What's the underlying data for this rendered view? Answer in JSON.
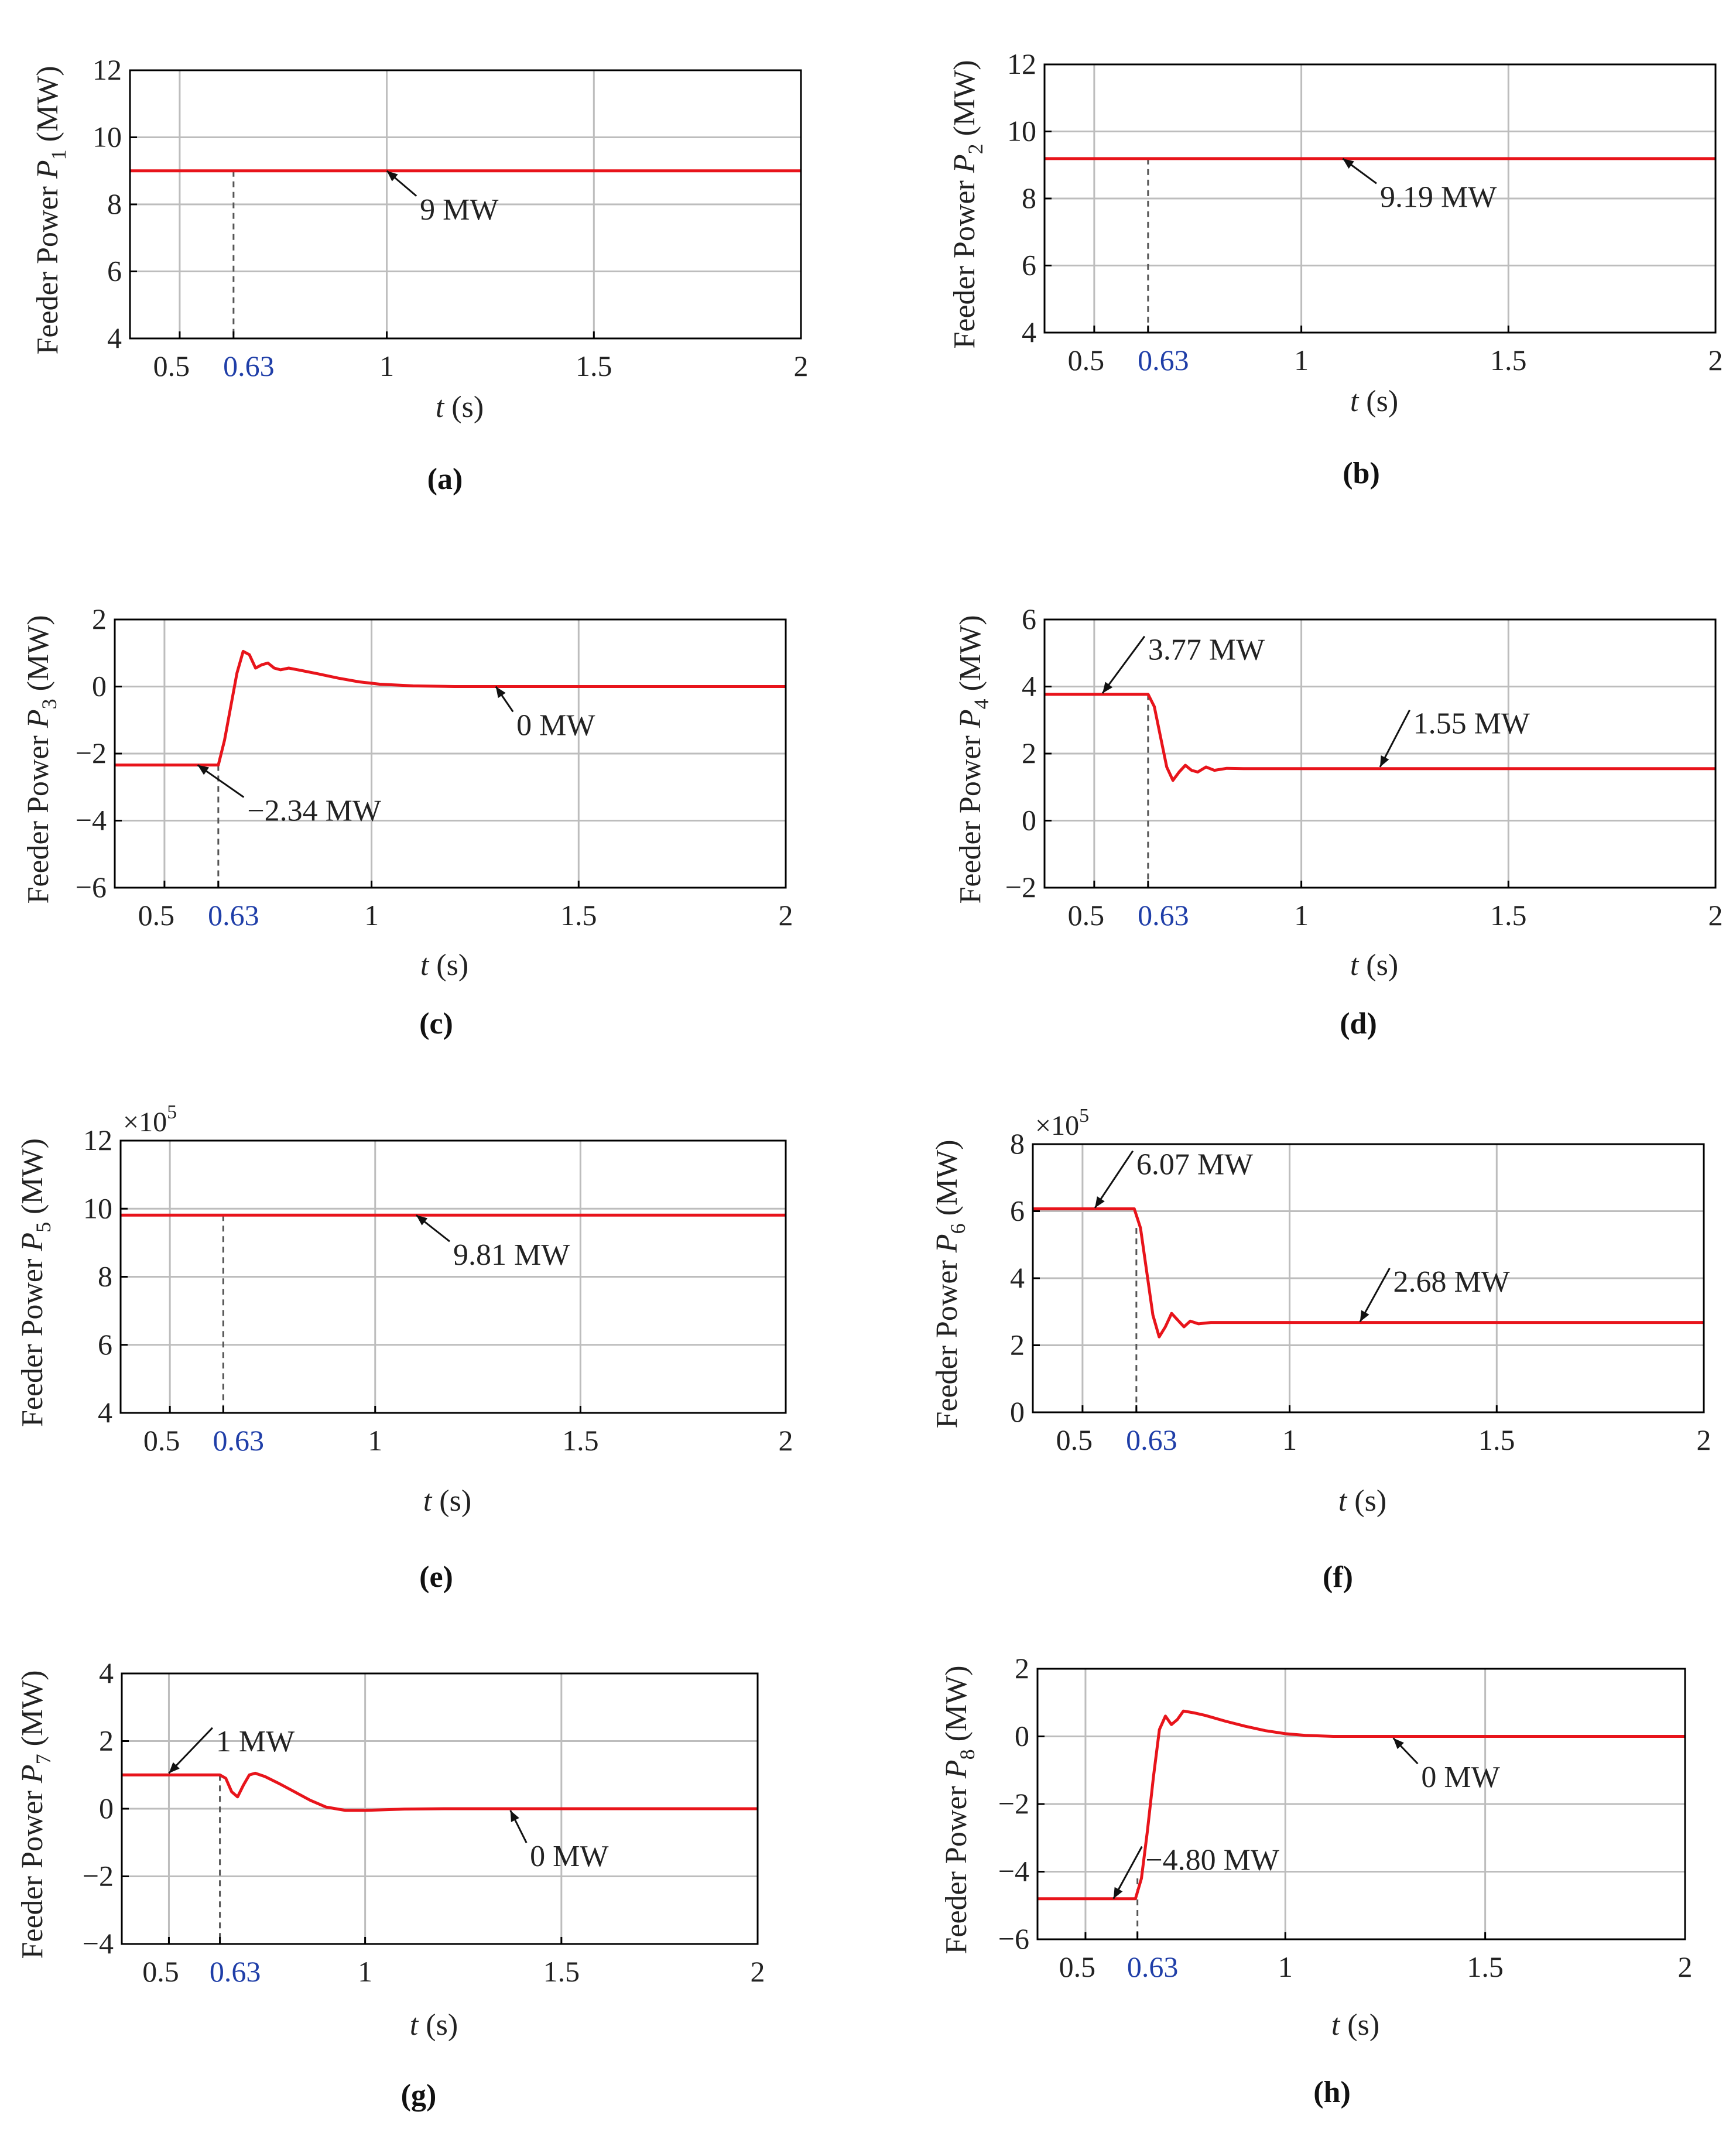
{
  "figure": {
    "axis_color": "#000000",
    "grid_color": "#bdbdbd",
    "line_color": "#e8141b",
    "highlight_tick_color": "#1f3ea8"
  },
  "chart_data": [
    {
      "id": "a",
      "caption": "(a)",
      "type": "line",
      "title": "",
      "ylabel_prefix": "Feeder Power ",
      "ylabel_var": "P",
      "ylabel_sub": "1",
      "ylabel_suffix": " (MW)",
      "xlabel_var": "t",
      "xlabel_suffix": " (s)",
      "xlim": [
        0.38,
        2
      ],
      "ylim": [
        4,
        12
      ],
      "xticks": [
        0.5,
        0.63,
        1,
        1.5,
        2
      ],
      "xtick_labels": [
        "0.5",
        "0.63",
        "1",
        "1.5",
        "2"
      ],
      "highlight_xtick": "0.63",
      "yticks": [
        4,
        6,
        8,
        10,
        12
      ],
      "ytick_labels": [
        "4",
        "6",
        "8",
        "10",
        "12"
      ],
      "grid_x": [
        0.5,
        1,
        1.5
      ],
      "grid_y": [
        6,
        8,
        10
      ],
      "scale_label": "",
      "dashed_x": 0.63,
      "series": [
        {
          "name": "P1",
          "points": [
            [
              0.38,
              9
            ],
            [
              2,
              9
            ]
          ]
        }
      ],
      "annotations": [
        {
          "text": "9 MW",
          "target": [
            1.0,
            9
          ],
          "text_at": [
            1.08,
            7.55
          ]
        }
      ]
    },
    {
      "id": "b",
      "caption": "(b)",
      "type": "line",
      "title": "",
      "ylabel_prefix": "Feeder Power ",
      "ylabel_var": "P",
      "ylabel_sub": "2",
      "ylabel_suffix": " (MW)",
      "xlabel_var": "t",
      "xlabel_suffix": " (s)",
      "xlim": [
        0.38,
        2
      ],
      "ylim": [
        4,
        12
      ],
      "xticks": [
        0.5,
        0.63,
        1,
        1.5,
        2
      ],
      "xtick_labels": [
        "0.5",
        "0.63",
        "1",
        "1.5",
        "2"
      ],
      "highlight_xtick": "0.63",
      "yticks": [
        4,
        6,
        8,
        10,
        12
      ],
      "ytick_labels": [
        "4",
        "6",
        "8",
        "10",
        "12"
      ],
      "grid_x": [
        0.5,
        1,
        1.5
      ],
      "grid_y": [
        6,
        8,
        10
      ],
      "scale_label": "",
      "dashed_x": 0.63,
      "series": [
        {
          "name": "P2",
          "points": [
            [
              0.38,
              9.19
            ],
            [
              2,
              9.19
            ]
          ]
        }
      ],
      "annotations": [
        {
          "text": "9.19 MW",
          "target": [
            1.1,
            9.19
          ],
          "text_at": [
            1.19,
            7.75
          ]
        }
      ]
    },
    {
      "id": "c",
      "caption": "(c)",
      "type": "line",
      "title": "",
      "ylabel_prefix": "Feeder Power ",
      "ylabel_var": "P",
      "ylabel_sub": "3",
      "ylabel_suffix": " (MW)",
      "xlabel_var": "t",
      "xlabel_suffix": " (s)",
      "xlim": [
        0.38,
        2
      ],
      "ylim": [
        -6,
        2
      ],
      "xticks": [
        0.5,
        0.63,
        1,
        1.5,
        2
      ],
      "xtick_labels": [
        "0.5",
        "0.63",
        "1",
        "1.5",
        "2"
      ],
      "highlight_xtick": "0.63",
      "yticks": [
        -6,
        -4,
        -2,
        0,
        2
      ],
      "ytick_labels": [
        "-6",
        "-4",
        "-2",
        "0",
        "2"
      ],
      "grid_x": [
        0.5,
        1,
        1.5
      ],
      "grid_y": [
        -4,
        -2,
        0
      ],
      "scale_label": "",
      "dashed_x": 0.63,
      "series": [
        {
          "name": "P3",
          "points": [
            [
              0.38,
              -2.34
            ],
            [
              0.63,
              -2.34
            ],
            [
              0.645,
              -1.6
            ],
            [
              0.66,
              -0.6
            ],
            [
              0.675,
              0.4
            ],
            [
              0.69,
              1.05
            ],
            [
              0.705,
              0.95
            ],
            [
              0.72,
              0.55
            ],
            [
              0.735,
              0.65
            ],
            [
              0.75,
              0.7
            ],
            [
              0.765,
              0.55
            ],
            [
              0.78,
              0.5
            ],
            [
              0.8,
              0.55
            ],
            [
              0.83,
              0.48
            ],
            [
              0.87,
              0.38
            ],
            [
              0.92,
              0.25
            ],
            [
              0.97,
              0.14
            ],
            [
              1.02,
              0.07
            ],
            [
              1.1,
              0.02
            ],
            [
              1.2,
              0.0
            ],
            [
              2,
              0.0
            ]
          ]
        }
      ],
      "annotations": [
        {
          "text": "0 MW",
          "target": [
            1.3,
            0
          ],
          "text_at": [
            1.35,
            -1.45
          ]
        },
        {
          "text": "−2.34 MW",
          "target": [
            0.58,
            -2.34
          ],
          "text_at": [
            0.7,
            -4.0
          ]
        }
      ]
    },
    {
      "id": "d",
      "caption": "(d)",
      "type": "line",
      "title": "",
      "ylabel_prefix": "Feeder Power ",
      "ylabel_var": "P",
      "ylabel_sub": "4",
      "ylabel_suffix": " (MW)",
      "xlabel_var": "t",
      "xlabel_suffix": " (s)",
      "xlim": [
        0.38,
        2
      ],
      "ylim": [
        -2,
        6
      ],
      "xticks": [
        0.5,
        0.63,
        1,
        1.5,
        2
      ],
      "xtick_labels": [
        "0.5",
        "0.63",
        "1",
        "1.5",
        "2"
      ],
      "highlight_xtick": "0.63",
      "yticks": [
        -2,
        0,
        2,
        4,
        6
      ],
      "ytick_labels": [
        "-2",
        "0",
        "2",
        "4",
        "6"
      ],
      "grid_x": [
        0.5,
        1,
        1.5
      ],
      "grid_y": [
        0,
        2,
        4
      ],
      "scale_label": "",
      "dashed_x": 0.63,
      "series": [
        {
          "name": "P4",
          "points": [
            [
              0.38,
              3.77
            ],
            [
              0.63,
              3.77
            ],
            [
              0.645,
              3.4
            ],
            [
              0.66,
              2.5
            ],
            [
              0.675,
              1.6
            ],
            [
              0.69,
              1.2
            ],
            [
              0.705,
              1.45
            ],
            [
              0.72,
              1.65
            ],
            [
              0.735,
              1.5
            ],
            [
              0.75,
              1.45
            ],
            [
              0.77,
              1.6
            ],
            [
              0.79,
              1.5
            ],
            [
              0.82,
              1.56
            ],
            [
              0.86,
              1.55
            ],
            [
              2,
              1.55
            ]
          ]
        }
      ],
      "annotations": [
        {
          "text": "3.77 MW",
          "target": [
            0.52,
            3.8
          ],
          "text_at": [
            0.63,
            4.8
          ]
        },
        {
          "text": "1.55 MW",
          "target": [
            1.19,
            1.6
          ],
          "text_at": [
            1.27,
            2.6
          ]
        }
      ]
    },
    {
      "id": "e",
      "caption": "(e)",
      "type": "line",
      "title": "",
      "ylabel_prefix": "Feeder Power ",
      "ylabel_var": "P",
      "ylabel_sub": "5",
      "ylabel_suffix": " (MW)",
      "xlabel_var": "t",
      "xlabel_suffix": " (s)",
      "xlim": [
        0.38,
        2
      ],
      "ylim": [
        4,
        12
      ],
      "xticks": [
        0.5,
        0.63,
        1,
        1.5,
        2
      ],
      "xtick_labels": [
        "0.5",
        "0.63",
        "1",
        "1.5",
        "2"
      ],
      "highlight_xtick": "0.63",
      "yticks": [
        4,
        6,
        8,
        10,
        12
      ],
      "ytick_labels": [
        "4",
        "6",
        "8",
        "10",
        "12"
      ],
      "grid_x": [
        0.5,
        1,
        1.5
      ],
      "grid_y": [
        6,
        8,
        10
      ],
      "scale_label": "×10",
      "scale_exp": "5",
      "dashed_x": 0.63,
      "series": [
        {
          "name": "P5",
          "points": [
            [
              0.38,
              9.81
            ],
            [
              2,
              9.81
            ]
          ]
        }
      ],
      "annotations": [
        {
          "text": "9.81 MW",
          "target": [
            1.1,
            9.81
          ],
          "text_at": [
            1.19,
            8.35
          ]
        }
      ]
    },
    {
      "id": "f",
      "caption": "(f)",
      "type": "line",
      "title": "",
      "ylabel_prefix": "Feeder Power ",
      "ylabel_var": "P",
      "ylabel_sub": "6",
      "ylabel_suffix": " (MW)",
      "xlabel_var": "t",
      "xlabel_suffix": " (s)",
      "xlim": [
        0.38,
        2
      ],
      "ylim": [
        0,
        8
      ],
      "xticks": [
        0.5,
        0.63,
        1,
        1.5,
        2
      ],
      "xtick_labels": [
        "0.5",
        "0.63",
        "1",
        "1.5",
        "2"
      ],
      "highlight_xtick": "0.63",
      "yticks": [
        0,
        2,
        4,
        6,
        8
      ],
      "ytick_labels": [
        "0",
        "2",
        "4",
        "6",
        "8"
      ],
      "grid_x": [
        0.5,
        1,
        1.5
      ],
      "grid_y": [
        2,
        4,
        6
      ],
      "scale_label": "×10",
      "scale_exp": "5",
      "dashed_x": 0.63,
      "series": [
        {
          "name": "P6",
          "points": [
            [
              0.38,
              6.07
            ],
            [
              0.625,
              6.07
            ],
            [
              0.64,
              5.5
            ],
            [
              0.655,
              4.2
            ],
            [
              0.67,
              2.9
            ],
            [
              0.685,
              2.25
            ],
            [
              0.7,
              2.55
            ],
            [
              0.715,
              2.95
            ],
            [
              0.73,
              2.75
            ],
            [
              0.745,
              2.55
            ],
            [
              0.76,
              2.72
            ],
            [
              0.78,
              2.64
            ],
            [
              0.81,
              2.68
            ],
            [
              2,
              2.68
            ]
          ]
        }
      ],
      "annotations": [
        {
          "text": "6.07 MW",
          "target": [
            0.53,
            6.1
          ],
          "text_at": [
            0.63,
            7.1
          ]
        },
        {
          "text": "2.68 MW",
          "target": [
            1.17,
            2.7
          ],
          "text_at": [
            1.25,
            3.6
          ]
        }
      ]
    },
    {
      "id": "g",
      "caption": "(g)",
      "type": "line",
      "title": "",
      "ylabel_prefix": "Feeder Power ",
      "ylabel_var": "P",
      "ylabel_sub": "7",
      "ylabel_suffix": " (MW)",
      "xlabel_var": "t",
      "xlabel_suffix": " (s)",
      "xlim": [
        0.38,
        2
      ],
      "ylim": [
        -4,
        4
      ],
      "xticks": [
        0.5,
        0.63,
        1,
        1.5,
        2
      ],
      "xtick_labels": [
        "0.5",
        "0.63",
        "1",
        "1.5",
        "2"
      ],
      "highlight_xtick": "0.63",
      "yticks": [
        -4,
        -2,
        0,
        2,
        4
      ],
      "ytick_labels": [
        "-4",
        "-2",
        "0",
        "2",
        "4"
      ],
      "grid_x": [
        0.5,
        1,
        1.5
      ],
      "grid_y": [
        -2,
        0,
        2
      ],
      "scale_label": "",
      "dashed_x": 0.63,
      "series": [
        {
          "name": "P7",
          "points": [
            [
              0.38,
              1.0
            ],
            [
              0.63,
              1.0
            ],
            [
              0.645,
              0.9
            ],
            [
              0.66,
              0.5
            ],
            [
              0.675,
              0.35
            ],
            [
              0.69,
              0.7
            ],
            [
              0.705,
              1.0
            ],
            [
              0.72,
              1.05
            ],
            [
              0.745,
              0.95
            ],
            [
              0.78,
              0.75
            ],
            [
              0.82,
              0.5
            ],
            [
              0.86,
              0.25
            ],
            [
              0.9,
              0.05
            ],
            [
              0.95,
              -0.05
            ],
            [
              1.0,
              -0.05
            ],
            [
              1.1,
              -0.01
            ],
            [
              1.2,
              0.0
            ],
            [
              2,
              0.0
            ]
          ]
        }
      ],
      "annotations": [
        {
          "text": "1 MW",
          "target": [
            0.5,
            1.05
          ],
          "text_at": [
            0.62,
            1.7
          ]
        },
        {
          "text": "0 MW",
          "target": [
            1.37,
            -0.05
          ],
          "text_at": [
            1.42,
            -1.7
          ]
        }
      ]
    },
    {
      "id": "h",
      "caption": "(h)",
      "type": "line",
      "title": "",
      "ylabel_prefix": "Feeder Power ",
      "ylabel_var": "P",
      "ylabel_sub": "8",
      "ylabel_suffix": " (MW)",
      "xlabel_var": "t",
      "xlabel_suffix": " (s)",
      "xlim": [
        0.38,
        2
      ],
      "ylim": [
        -6,
        2
      ],
      "xticks": [
        0.5,
        0.63,
        1,
        1.5,
        2
      ],
      "xtick_labels": [
        "0.5",
        "0.63",
        "1",
        "1.5",
        "2"
      ],
      "highlight_xtick": "0.63",
      "yticks": [
        -6,
        -4,
        -2,
        0,
        2
      ],
      "ytick_labels": [
        "-6",
        "-4",
        "-2",
        "0",
        "2"
      ],
      "grid_x": [
        0.5,
        1,
        1.5
      ],
      "grid_y": [
        -4,
        -2,
        0
      ],
      "scale_label": "",
      "dashed_x": 0.63,
      "series": [
        {
          "name": "P8",
          "points": [
            [
              0.38,
              -4.8
            ],
            [
              0.625,
              -4.8
            ],
            [
              0.64,
              -4.2
            ],
            [
              0.655,
              -2.8
            ],
            [
              0.67,
              -1.2
            ],
            [
              0.685,
              0.2
            ],
            [
              0.7,
              0.6
            ],
            [
              0.715,
              0.35
            ],
            [
              0.73,
              0.5
            ],
            [
              0.745,
              0.75
            ],
            [
              0.77,
              0.7
            ],
            [
              0.8,
              0.62
            ],
            [
              0.85,
              0.45
            ],
            [
              0.9,
              0.3
            ],
            [
              0.95,
              0.17
            ],
            [
              1.0,
              0.08
            ],
            [
              1.05,
              0.03
            ],
            [
              1.12,
              0.0
            ],
            [
              2,
              0.0
            ]
          ]
        }
      ],
      "annotations": [
        {
          "text": "0 MW",
          "target": [
            1.27,
            -0.05
          ],
          "text_at": [
            1.34,
            -1.5
          ]
        },
        {
          "text": "−4.80 MW",
          "target": [
            0.57,
            -4.8
          ],
          "text_at": [
            0.65,
            -3.95
          ]
        }
      ]
    }
  ]
}
